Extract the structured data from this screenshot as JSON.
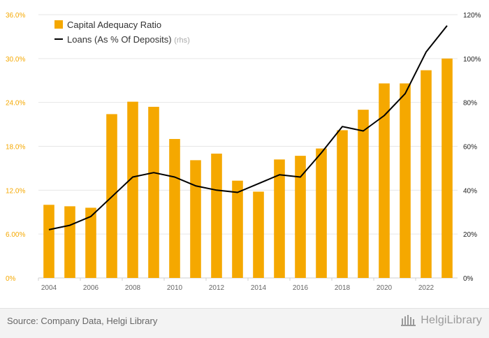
{
  "chart_data": {
    "type": "bar",
    "categories": [
      "2004",
      "2005",
      "2006",
      "2007",
      "2008",
      "2009",
      "2010",
      "2011",
      "2012",
      "2013",
      "2014",
      "2015",
      "2016",
      "2017",
      "2018",
      "2019",
      "2020",
      "2021",
      "2022",
      "2023"
    ],
    "x_tick_labels": [
      "2004",
      "2006",
      "2008",
      "2010",
      "2012",
      "2014",
      "2016",
      "2018",
      "2020",
      "2022"
    ],
    "series": [
      {
        "name": "Capital Adequacy Ratio",
        "type": "bar",
        "axis": "left",
        "color": "#f5a800",
        "values": [
          10.0,
          9.8,
          9.6,
          22.4,
          24.1,
          23.4,
          19.0,
          16.1,
          17.0,
          13.3,
          11.8,
          16.2,
          16.7,
          17.7,
          20.2,
          23.0,
          26.6,
          26.6,
          28.4,
          30.0
        ]
      },
      {
        "name": "Loans (As % Of Deposits)",
        "name_suffix": "(rhs)",
        "type": "line",
        "axis": "right",
        "color": "#000000",
        "values": [
          22,
          24,
          28,
          37,
          46,
          48,
          46,
          42,
          40,
          39,
          43,
          47,
          46,
          57,
          69,
          67,
          74,
          84,
          103,
          115
        ]
      }
    ],
    "y_left": {
      "min": 0,
      "max": 36,
      "ticks": [
        0,
        6,
        12,
        18,
        24,
        30,
        36
      ],
      "tick_labels": [
        "0%",
        "6.00%",
        "12.0%",
        "18.0%",
        "24.0%",
        "30.0%",
        "36.0%"
      ],
      "color": "#f5a800"
    },
    "y_right": {
      "min": 0,
      "max": 120,
      "ticks": [
        0,
        20,
        40,
        60,
        80,
        100,
        120
      ],
      "tick_labels": [
        "0%",
        "20%",
        "40%",
        "60%",
        "80%",
        "100%",
        "120%"
      ]
    },
    "grid": true,
    "legend_position": "top-left"
  },
  "footer": {
    "source": "Source: Company Data, Helgi Library",
    "brand": "HelgiLibrary"
  }
}
